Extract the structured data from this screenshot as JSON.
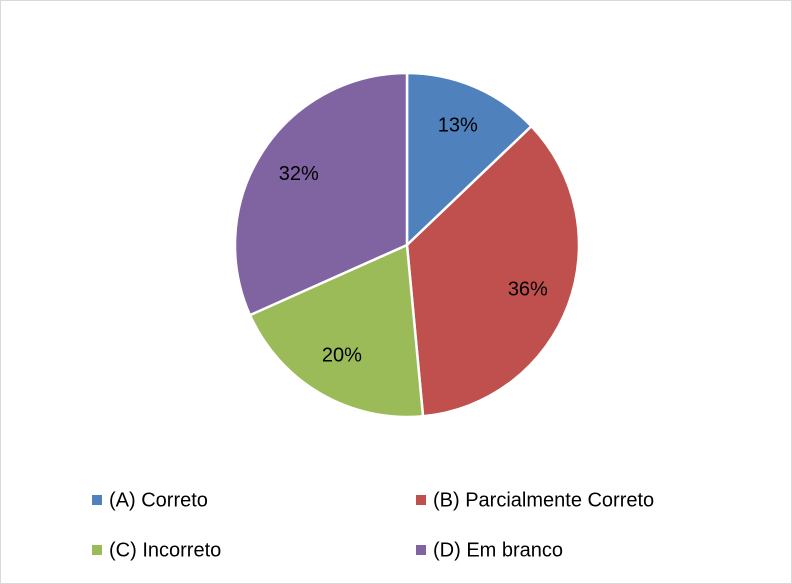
{
  "chart_data": {
    "type": "pie",
    "categories": [
      "(A) Correto",
      "(B) Parcialmente Correto",
      "(C) Incorreto",
      "(D) Em branco"
    ],
    "values": [
      13,
      36,
      20,
      32
    ],
    "value_labels": [
      "13%",
      "36%",
      "20%",
      "32%"
    ],
    "colors": [
      "#4f81bd",
      "#c0504d",
      "#9bbb59",
      "#8064a2"
    ],
    "legend": "bottom"
  }
}
